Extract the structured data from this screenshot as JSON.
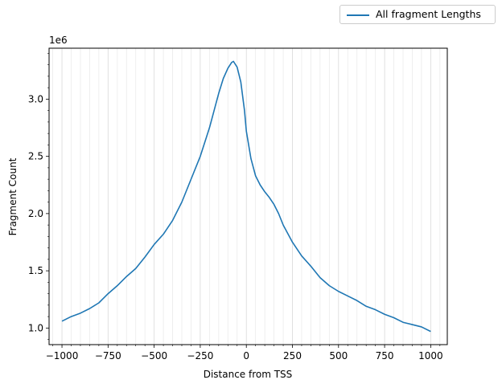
{
  "chart_data": {
    "type": "line",
    "title": "",
    "xlabel": "Distance from TSS",
    "ylabel": "Fragment Count",
    "y_offset_label": "1e6",
    "xlim": [
      -1070,
      1090
    ],
    "ylim": [
      0.855,
      3.445
    ],
    "x_ticks": [
      -1000,
      -750,
      -500,
      -250,
      0,
      250,
      500,
      750,
      1000
    ],
    "x_tick_labels": [
      "−1000",
      "−750",
      "−500",
      "−250",
      "0",
      "250",
      "500",
      "750",
      "1000"
    ],
    "y_ticks": [
      1.0,
      1.5,
      2.0,
      2.5,
      3.0
    ],
    "y_tick_labels": [
      "1.0",
      "1.5",
      "2.0",
      "2.5",
      "3.0"
    ],
    "grid": "vertical major and minor lines",
    "legend_position": "outside top-right",
    "series": [
      {
        "name": "All fragment Lengths",
        "color": "#1f77b4",
        "x": [
          -1000,
          -950,
          -900,
          -850,
          -800,
          -750,
          -700,
          -650,
          -600,
          -550,
          -500,
          -450,
          -400,
          -350,
          -300,
          -250,
          -200,
          -175,
          -150,
          -125,
          -100,
          -80,
          -70,
          -50,
          -30,
          -10,
          0,
          25,
          50,
          75,
          100,
          125,
          150,
          175,
          200,
          250,
          300,
          350,
          400,
          450,
          500,
          550,
          600,
          650,
          700,
          750,
          800,
          850,
          900,
          950,
          1000
        ],
        "y": [
          1.06,
          1.1,
          1.13,
          1.17,
          1.22,
          1.3,
          1.37,
          1.45,
          1.52,
          1.62,
          1.73,
          1.82,
          1.94,
          2.1,
          2.3,
          2.5,
          2.75,
          2.9,
          3.05,
          3.18,
          3.27,
          3.32,
          3.33,
          3.28,
          3.15,
          2.9,
          2.72,
          2.48,
          2.33,
          2.25,
          2.19,
          2.14,
          2.08,
          2.0,
          1.9,
          1.75,
          1.63,
          1.54,
          1.44,
          1.37,
          1.32,
          1.28,
          1.24,
          1.19,
          1.16,
          1.12,
          1.09,
          1.05,
          1.03,
          1.01,
          0.97
        ]
      }
    ]
  }
}
